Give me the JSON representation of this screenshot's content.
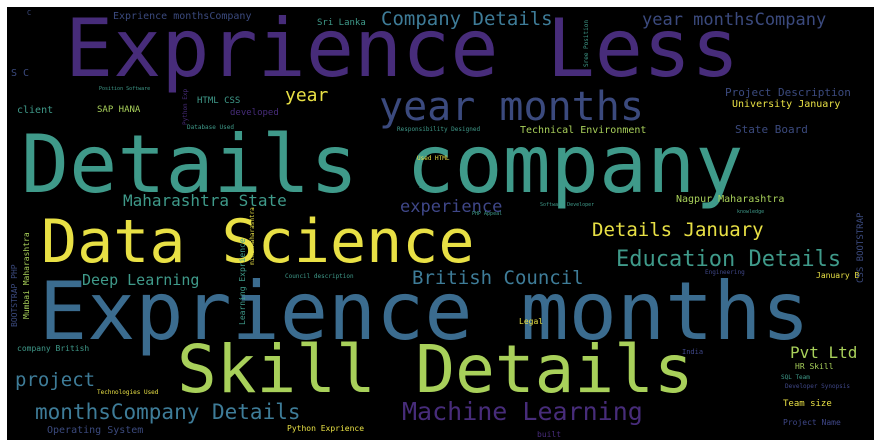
{
  "colors": {
    "background": "#000000",
    "purple": "#472c7a",
    "dark_purple": "#3b1f6e",
    "indigo": "#3f4788",
    "blue": "#3b6c8f",
    "steel_blue": "#3e7c98",
    "teal": "#3f9a8a",
    "green": "#4caf6e",
    "lime": "#a8d05a",
    "yellow": "#e8e045",
    "light_green": "#8fd15b"
  },
  "words": {
    "w01": "Exprience Less",
    "w02": "Details company",
    "w03": "Data Science",
    "w04": "Exprience months",
    "w05": "Skill Details",
    "w06": "year months",
    "w07": "Company Details",
    "w08": "year monthsCompany",
    "w09": "Machine Learning",
    "w10": "monthsCompany Details",
    "w11": "Education Details",
    "w12": "British Council",
    "w13": "Details January",
    "w14": "Maharashtra State",
    "w15": "experience",
    "w16": "Deep Learning",
    "w17": "project",
    "w18": "year",
    "w19": "Pvt Ltd",
    "w20": "Exprience monthsCompany",
    "w21": "Sri Lanka",
    "w22": "Project Description",
    "w23": "University January",
    "w24": "Technical Environment",
    "w25": "State Board",
    "w26": "Nagpur Maharashtra",
    "w27": "client",
    "w28": "SAP HANA",
    "w29": "HTML CSS",
    "w30": "developed",
    "w31": "Database Used",
    "w32": "Responsibility Designed",
    "w33": "Used HTML",
    "w34": "Operating System",
    "w35": "Python Exprience",
    "w36": "company British",
    "w37": "Technologies Used",
    "w38": "Team size",
    "w39": "Project Name",
    "w40": "HR Skill",
    "w41": "SQL Team",
    "w42": "Developer Synopsis",
    "w43": "Council description",
    "w44": "Engineering",
    "w45": "January B",
    "w46": "Legal",
    "w47": "India",
    "w48": "Software Developer",
    "w49": "knowledge",
    "w50": "PHP Appeal",
    "w51": "Law",
    "w52": "Position Software",
    "w53": "Mumbai Maharashtra",
    "w54": "BOOTSTRAP PHP",
    "w55": "Learning Exprience",
    "w56": "CSS BOOTSTRAP",
    "w57": "S C",
    "w58": "C",
    "w59": "Sree Position",
    "w60": "built",
    "w61": "Python Exp",
    "w62": "mind Maharashtra"
  }
}
